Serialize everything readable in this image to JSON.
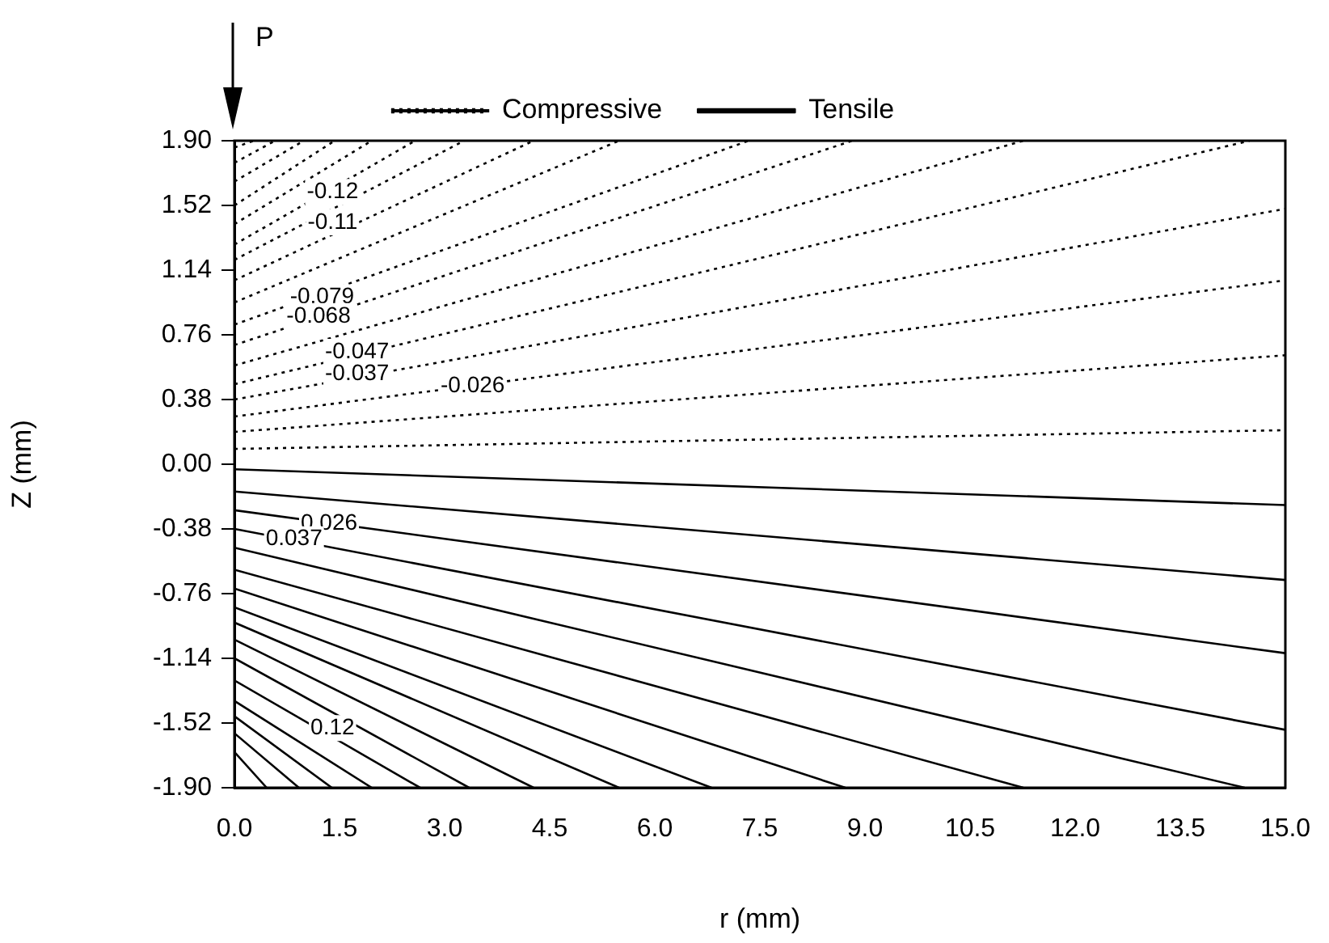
{
  "chart_data": {
    "type": "line",
    "xlabel": "r (mm)",
    "ylabel": "Z (mm)",
    "xlim": [
      0,
      15
    ],
    "ylim": [
      -1.9,
      1.9
    ],
    "xticks": [
      {
        "value": 0,
        "label": "0.0"
      },
      {
        "value": 1.5,
        "label": "1.5"
      },
      {
        "value": 3,
        "label": "3.0"
      },
      {
        "value": 4.5,
        "label": "4.5"
      },
      {
        "value": 6,
        "label": "6.0"
      },
      {
        "value": 7.5,
        "label": "7.5"
      },
      {
        "value": 9,
        "label": "9.0"
      },
      {
        "value": 10.5,
        "label": "10.5"
      },
      {
        "value": 12,
        "label": "12.0"
      },
      {
        "value": 13.5,
        "label": "13.5"
      },
      {
        "value": 15,
        "label": "15.0"
      }
    ],
    "yticks": [
      {
        "value": -1.9,
        "label": "-1.90"
      },
      {
        "value": -1.52,
        "label": "-1.52"
      },
      {
        "value": -1.14,
        "label": "-1.14"
      },
      {
        "value": -0.76,
        "label": "-0.76"
      },
      {
        "value": -0.38,
        "label": "-0.38"
      },
      {
        "value": 0,
        "label": "0.00"
      },
      {
        "value": 0.38,
        "label": "0.38"
      },
      {
        "value": 0.76,
        "label": "0.76"
      },
      {
        "value": 1.14,
        "label": "1.14"
      },
      {
        "value": 1.52,
        "label": "1.52"
      },
      {
        "value": 1.9,
        "label": "1.90"
      }
    ],
    "grid": false,
    "legend": "top",
    "marker": "none",
    "series": [
      {
        "name": "Compressive",
        "color": "#000000",
        "line_style": "dotted",
        "x": [
          0,
          15
        ],
        "values": [
          0.09,
          0.2
        ]
      },
      {
        "color": "#000000",
        "line_style": "dotted",
        "x": [
          0,
          15
        ],
        "values": [
          0.19,
          0.64
        ]
      },
      {
        "color": "#000000",
        "line_style": "dotted",
        "x": [
          0,
          15
        ],
        "values": [
          0.28,
          1.08
        ]
      },
      {
        "color": "#000000",
        "line_style": "dotted",
        "x": [
          0,
          15
        ],
        "values": [
          0.38,
          1.5
        ]
      },
      {
        "color": "#000000",
        "line_style": "dotted",
        "x": [
          0,
          14.49
        ],
        "values": [
          0.47,
          1.9
        ]
      },
      {
        "color": "#000000",
        "line_style": "dotted",
        "x": [
          0,
          11.26
        ],
        "values": [
          0.58,
          1.9
        ]
      },
      {
        "color": "#000000",
        "line_style": "dotted",
        "x": [
          0,
          8.82
        ],
        "values": [
          0.7,
          1.9
        ]
      },
      {
        "color": "#000000",
        "line_style": "dotted",
        "x": [
          0,
          7.34
        ],
        "values": [
          0.82,
          1.9
        ]
      },
      {
        "color": "#000000",
        "line_style": "dotted",
        "x": [
          0,
          5.49
        ],
        "values": [
          0.95,
          1.9
        ]
      },
      {
        "color": "#000000",
        "line_style": "dotted",
        "x": [
          0,
          4.27
        ],
        "values": [
          1.08,
          1.9
        ]
      },
      {
        "color": "#000000",
        "line_style": "dotted",
        "x": [
          0,
          3.28
        ],
        "values": [
          1.2,
          1.9
        ]
      },
      {
        "color": "#000000",
        "line_style": "dotted",
        "x": [
          0,
          2.58
        ],
        "values": [
          1.29,
          1.9
        ]
      },
      {
        "color": "#000000",
        "line_style": "dotted",
        "x": [
          0,
          1.96
        ],
        "values": [
          1.41,
          1.9
        ]
      },
      {
        "color": "#000000",
        "line_style": "dotted",
        "x": [
          0,
          1.43
        ],
        "values": [
          1.52,
          1.9
        ]
      },
      {
        "color": "#000000",
        "line_style": "dotted",
        "x": [
          0,
          0.99
        ],
        "values": [
          1.66,
          1.9
        ]
      },
      {
        "color": "#000000",
        "line_style": "dotted",
        "x": [
          0,
          0.58
        ],
        "values": [
          1.77,
          1.9
        ]
      },
      {
        "color": "#000000",
        "line_style": "dotted",
        "x": [
          0,
          0.28
        ],
        "values": [
          1.86,
          1.9
        ]
      },
      {
        "name": "Tensile",
        "color": "#000000",
        "line_style": "solid",
        "x": [
          0,
          15
        ],
        "values": [
          -0.03,
          -0.24
        ]
      },
      {
        "color": "#000000",
        "line_style": "solid",
        "x": [
          0,
          15
        ],
        "values": [
          -0.16,
          -0.68
        ]
      },
      {
        "color": "#000000",
        "line_style": "solid",
        "x": [
          0,
          15
        ],
        "values": [
          -0.27,
          -1.11
        ]
      },
      {
        "color": "#000000",
        "line_style": "solid",
        "x": [
          0,
          15
        ],
        "values": [
          -0.38,
          -1.56
        ]
      },
      {
        "color": "#000000",
        "line_style": "solid",
        "x": [
          0,
          14.42
        ],
        "values": [
          -0.49,
          -1.9
        ]
      },
      {
        "color": "#000000",
        "line_style": "solid",
        "x": [
          0,
          11.26
        ],
        "values": [
          -0.62,
          -1.9
        ]
      },
      {
        "color": "#000000",
        "line_style": "solid",
        "x": [
          0,
          8.72
        ],
        "values": [
          -0.73,
          -1.9
        ]
      },
      {
        "color": "#000000",
        "line_style": "solid",
        "x": [
          0,
          6.81
        ],
        "values": [
          -0.84,
          -1.9
        ]
      },
      {
        "color": "#000000",
        "line_style": "solid",
        "x": [
          0,
          5.49
        ],
        "values": [
          -0.93,
          -1.9
        ]
      },
      {
        "color": "#000000",
        "line_style": "solid",
        "x": [
          0,
          4.27
        ],
        "values": [
          -1.03,
          -1.9
        ]
      },
      {
        "color": "#000000",
        "line_style": "solid",
        "x": [
          0,
          3.35
        ],
        "values": [
          -1.14,
          -1.9
        ]
      },
      {
        "color": "#000000",
        "line_style": "solid",
        "x": [
          0,
          2.65
        ],
        "values": [
          -1.27,
          -1.9
        ]
      },
      {
        "color": "#000000",
        "line_style": "solid",
        "x": [
          0,
          1.96
        ],
        "values": [
          -1.39,
          -1.9
        ]
      },
      {
        "color": "#000000",
        "line_style": "solid",
        "x": [
          0,
          1.39
        ],
        "values": [
          -1.48,
          -1.9
        ]
      },
      {
        "color": "#000000",
        "line_style": "solid",
        "x": [
          0,
          0.92
        ],
        "values": [
          -1.58,
          -1.9
        ]
      },
      {
        "color": "#000000",
        "line_style": "solid",
        "x": [
          0,
          0.46
        ],
        "values": [
          -1.69,
          -1.9
        ]
      }
    ],
    "annotations": [
      "P",
      {
        "text": "-0.12",
        "x": 1.4,
        "y": 1.6
      },
      {
        "text": "-0.11",
        "x": 1.4,
        "y": 1.42
      },
      {
        "text": "-0.079",
        "x": 1.25,
        "y": 0.98
      },
      {
        "text": "-0.068",
        "x": 1.2,
        "y": 0.87
      },
      {
        "text": "-0.047",
        "x": 1.75,
        "y": 0.66
      },
      {
        "text": "-0.037",
        "x": 1.75,
        "y": 0.53
      },
      {
        "text": "-0.026",
        "x": 3.4,
        "y": 0.46
      },
      {
        "text": "0.026",
        "x": 1.35,
        "y": -0.35
      },
      {
        "text": "0.037",
        "x": 0.85,
        "y": -0.44
      },
      {
        "text": "0.12",
        "x": 1.4,
        "y": -1.55
      }
    ]
  }
}
